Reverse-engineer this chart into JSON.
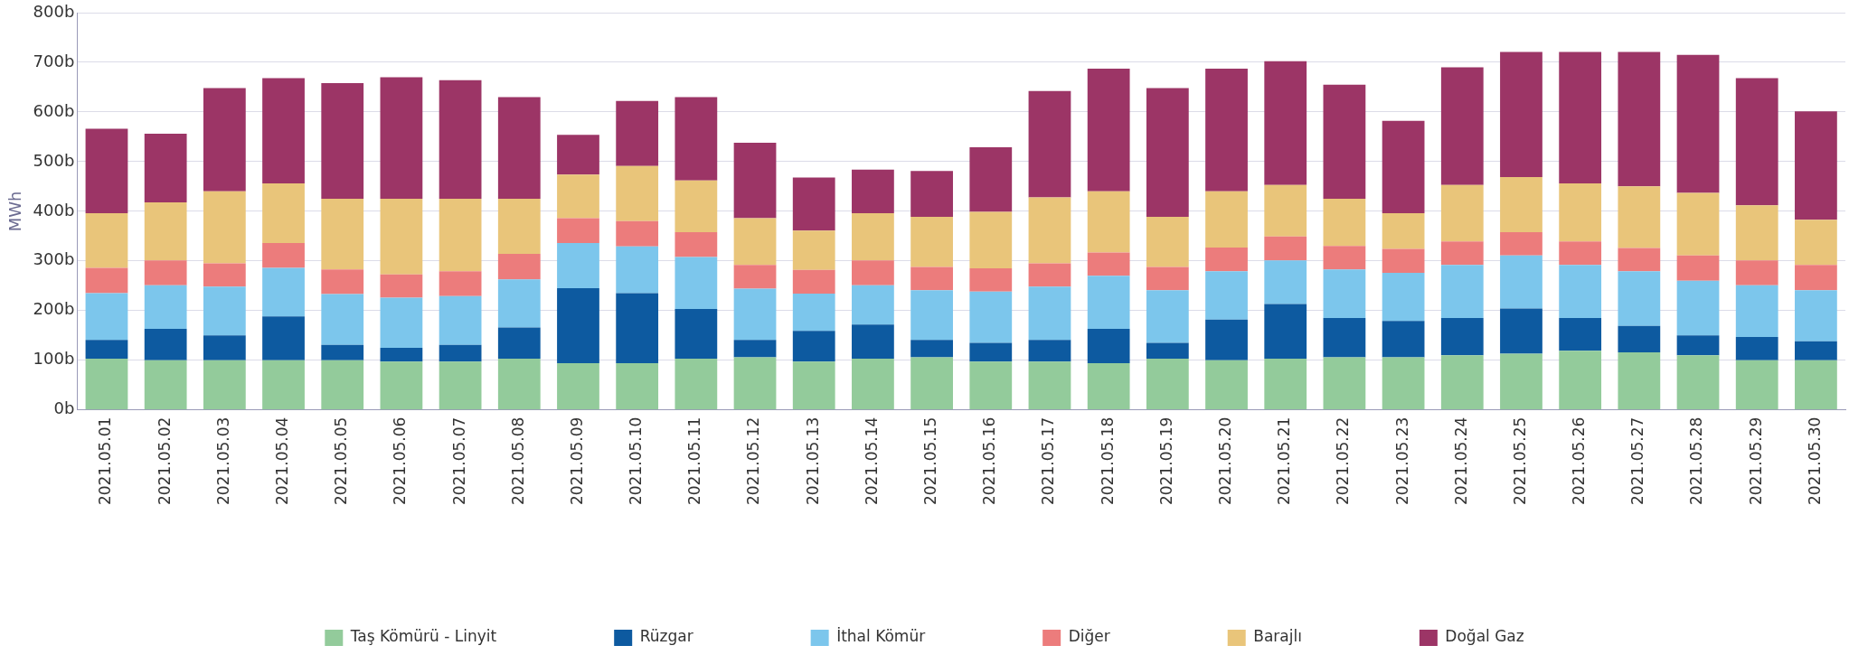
{
  "chart_data": {
    "type": "bar",
    "stacked": true,
    "ylabel": "MWh",
    "categories": [
      "2021.05.01",
      "2021.05.02",
      "2021.05.03",
      "2021.05.04",
      "2021.05.05",
      "2021.05.06",
      "2021.05.07",
      "2021.05.08",
      "2021.05.09",
      "2021.05.10",
      "2021.05.11",
      "2021.05.12",
      "2021.05.13",
      "2021.05.14",
      "2021.05.15",
      "2021.05.16",
      "2021.05.17",
      "2021.05.18",
      "2021.05.19",
      "2021.05.20",
      "2021.05.21",
      "2021.05.22",
      "2021.05.23",
      "2021.05.24",
      "2021.05.25",
      "2021.05.26",
      "2021.05.27",
      "2021.05.28",
      "2021.05.29",
      "2021.05.30"
    ],
    "series": [
      {
        "name": "Taş Kömürü - Linyit",
        "color": "#93cb9b",
        "values": [
          103,
          100,
          100,
          100,
          100,
          97,
          97,
          103,
          94,
          94,
          103,
          106,
          97,
          103,
          106,
          97,
          97,
          94,
          103,
          100,
          103,
          106,
          106,
          110,
          113,
          119,
          116,
          110,
          100,
          100
        ]
      },
      {
        "name": "Rüzgar",
        "color": "#0d5aa0",
        "values": [
          38,
          63,
          50,
          88,
          31,
          28,
          34,
          63,
          151,
          141,
          100,
          35,
          62,
          69,
          35,
          38,
          44,
          69,
          32,
          82,
          110,
          79,
          73,
          75,
          91,
          66,
          53,
          40,
          47,
          38
        ]
      },
      {
        "name": "İthal Kömür",
        "color": "#7cc6ec",
        "values": [
          94,
          88,
          98,
          98,
          102,
          101,
          98,
          97,
          91,
          94,
          105,
          103,
          75,
          79,
          100,
          103,
          107,
          107,
          106,
          97,
          88,
          98,
          97,
          107,
          107,
          107,
          110,
          110,
          104,
          103
        ]
      },
      {
        "name": "Diğer",
        "color": "#ec7c7c",
        "values": [
          51,
          50,
          47,
          50,
          50,
          47,
          50,
          51,
          50,
          51,
          50,
          48,
          48,
          50,
          47,
          47,
          47,
          47,
          47,
          48,
          48,
          47,
          48,
          47,
          47,
          47,
          47,
          51,
          50,
          51
        ]
      },
      {
        "name": "Barajlı",
        "color": "#e9c57a",
        "values": [
          110,
          117,
          145,
          120,
          142,
          152,
          146,
          111,
          88,
          111,
          104,
          94,
          79,
          95,
          101,
          114,
          133,
          123,
          101,
          113,
          104,
          95,
          72,
          114,
          111,
          117,
          124,
          126,
          111,
          91
        ]
      },
      {
        "name": "Doğal Gaz",
        "color": "#9c3566",
        "values": [
          170,
          138,
          208,
          212,
          233,
          245,
          239,
          205,
          80,
          131,
          168,
          152,
          107,
          88,
          92,
          130,
          214,
          247,
          259,
          247,
          249,
          230,
          186,
          237,
          252,
          265,
          271,
          278,
          256,
          218
        ]
      }
    ],
    "ylim": [
      0,
      800
    ],
    "yticks": [
      {
        "value": 0,
        "label": "0b"
      },
      {
        "value": 100,
        "label": "100b"
      },
      {
        "value": 200,
        "label": "200b"
      },
      {
        "value": 300,
        "label": "300b"
      },
      {
        "value": 400,
        "label": "400b"
      },
      {
        "value": 500,
        "label": "500b"
      },
      {
        "value": 600,
        "label": "600b"
      },
      {
        "value": 700,
        "label": "700b"
      },
      {
        "value": 800,
        "label": "800b"
      }
    ],
    "grid": "y",
    "legend": "bottom"
  }
}
